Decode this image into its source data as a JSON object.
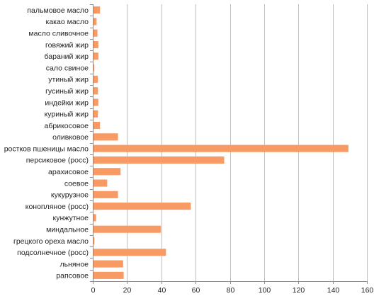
{
  "chart_data": {
    "type": "bar",
    "orientation": "horizontal",
    "title": "",
    "xlabel": "",
    "ylabel": "",
    "xlim": [
      0,
      160
    ],
    "x_ticks": [
      0,
      20,
      40,
      60,
      80,
      100,
      120,
      140,
      160
    ],
    "grid": true,
    "legend": "none",
    "bar_color": "#f79a63",
    "categories": [
      "пальмовое масло",
      "какао масло",
      "масло сливочное",
      "говяжий жир",
      "бараний жир",
      "сало свиное",
      "утиный жир",
      "гусиный жир",
      "индейки жир",
      "куриный жир",
      "абрикосовое",
      "оливковое",
      "ростков пшеницы масло",
      "персиковое (росс)",
      "арахисовое",
      "соевое",
      "кукурузное",
      "конопляное (росс)",
      "кунжутное",
      "миндальное",
      "грецкого ореха масло",
      "подсолнечное (росс)",
      "льняное",
      "рапсовое"
    ],
    "values": [
      4,
      2,
      2.5,
      3,
      3,
      0.6,
      2.8,
      2.8,
      3,
      2.8,
      4,
      14.5,
      149,
      76.5,
      16,
      8.2,
      14.5,
      57,
      1.7,
      39.5,
      0.7,
      42.5,
      17.5,
      17.8
    ]
  }
}
